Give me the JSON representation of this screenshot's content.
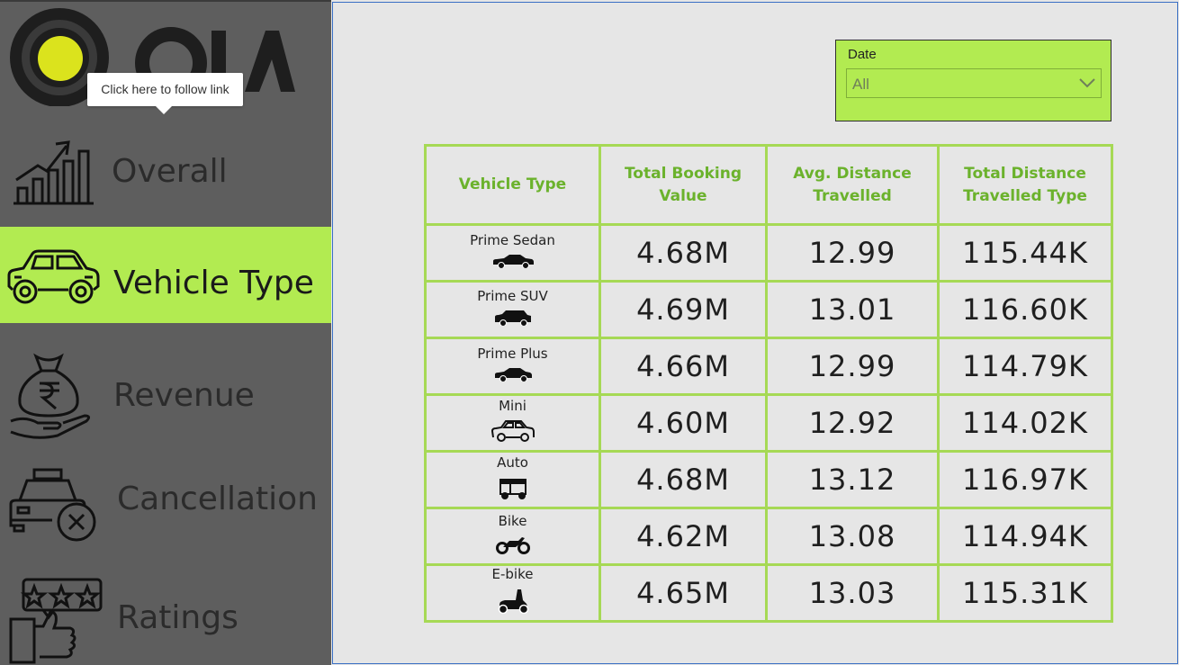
{
  "sidebar": {
    "tooltip": "Click here to follow link",
    "items": [
      {
        "label": "Overall",
        "active": false
      },
      {
        "label": "Vehicle Type",
        "active": true
      },
      {
        "label": "Revenue",
        "active": false
      },
      {
        "label": "Cancellation",
        "active": false
      },
      {
        "label": "Ratings",
        "active": false
      }
    ]
  },
  "colors": {
    "accent": "#b2eb51",
    "sidebar_bg": "#5e5e5e",
    "header_text": "#6bb22c",
    "grid_border": "#a6d955"
  },
  "slicer": {
    "title": "Date",
    "value": "All"
  },
  "table": {
    "headers": [
      "Vehicle Type",
      "Total Booking Value",
      "Avg. Distance Travelled",
      "Total Distance Travelled Type"
    ],
    "rows": [
      {
        "type": "Prime Sedan",
        "icon": "sedan-icon",
        "booking": "4.68M",
        "avg_distance": "12.99",
        "total_distance": "115.44K"
      },
      {
        "type": "Prime SUV",
        "icon": "suv-icon",
        "booking": "4.69M",
        "avg_distance": "13.01",
        "total_distance": "116.60K"
      },
      {
        "type": "Prime Plus",
        "icon": "car-icon",
        "booking": "4.66M",
        "avg_distance": "12.99",
        "total_distance": "114.79K"
      },
      {
        "type": "Mini",
        "icon": "hatchback-icon",
        "booking": "4.60M",
        "avg_distance": "12.92",
        "total_distance": "114.02K"
      },
      {
        "type": "Auto",
        "icon": "auto-rickshaw-icon",
        "booking": "4.68M",
        "avg_distance": "13.12",
        "total_distance": "116.97K"
      },
      {
        "type": "Bike",
        "icon": "motorbike-icon",
        "booking": "4.62M",
        "avg_distance": "13.08",
        "total_distance": "114.94K"
      },
      {
        "type": "E-bike",
        "icon": "scooter-icon",
        "booking": "4.65M",
        "avg_distance": "13.03",
        "total_distance": "115.31K"
      }
    ]
  }
}
